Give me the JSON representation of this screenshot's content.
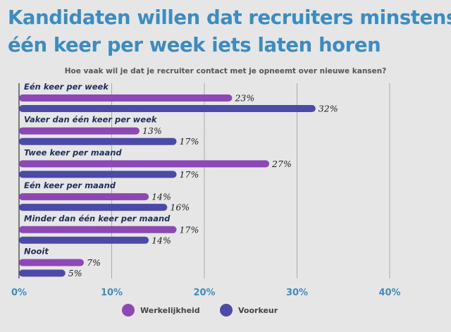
{
  "title_line1": "Kandidaten willen dat recruiters minstens",
  "title_line2": "één keer per week iets laten horen",
  "subtitle": "Hoe vaak wil je dat je recruiter contact met je opneemt over nieuwe kansen?",
  "chart_data": {
    "type": "bar",
    "orientation": "horizontal",
    "categories": [
      "Eén keer per week",
      "Vaker dan één keer per week",
      "Twee keer per maand",
      "Eén keer per maand",
      "Minder dan één keer per maand",
      "Nooit"
    ],
    "series": [
      {
        "name": "Werkelijkheid",
        "color": "#8e48b6",
        "values": [
          23,
          13,
          27,
          14,
          17,
          7
        ]
      },
      {
        "name": "Voorkeur",
        "color": "#4b4aa7",
        "values": [
          32,
          17,
          17,
          16,
          14,
          5
        ]
      }
    ],
    "value_labels": [
      [
        "23%",
        "13%",
        "27%",
        "14%",
        "17%",
        "7%"
      ],
      [
        "32%",
        "17%",
        "17%",
        "16%",
        "14%",
        "5%"
      ]
    ],
    "xlim": [
      0,
      40
    ],
    "xticks": [
      "0%",
      "10%",
      "20%",
      "30%",
      "40%"
    ],
    "grid": true,
    "legend_position": "bottom"
  }
}
